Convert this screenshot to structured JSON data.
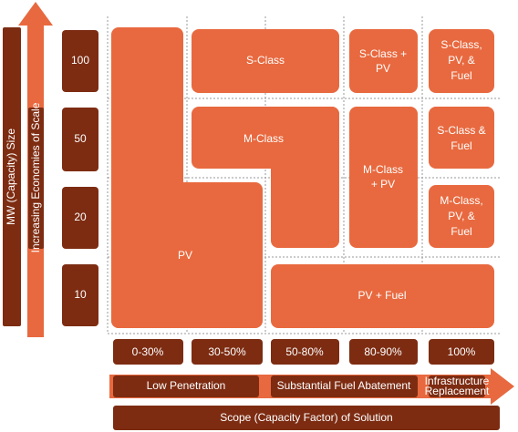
{
  "axis_label": "MW (Capacity) Size",
  "scale_arrow_label": "Increasing Economies of Scale",
  "size_levels": [
    100,
    50,
    20,
    10
  ],
  "solutions": [
    {
      "lines": [
        "PV"
      ]
    },
    {
      "lines": [
        "S-Class"
      ]
    },
    {
      "lines": [
        "M-Class"
      ]
    },
    {
      "lines": [
        "S-Class +",
        "PV"
      ]
    },
    {
      "lines": [
        "M-Class",
        "+ PV"
      ]
    },
    {
      "lines": [
        "S-Class,",
        "PV, &",
        "Fuel"
      ]
    },
    {
      "lines": [
        "S-Class &",
        "Fuel"
      ]
    },
    {
      "lines": [
        "M-Class,",
        "PV, &",
        "Fuel"
      ]
    },
    {
      "lines": [
        "PV + Fuel"
      ]
    }
  ],
  "capacity_factors": [
    "0-30%",
    "30-50%",
    "50-80%",
    "80-90%",
    "100%"
  ],
  "stages": [
    {
      "lines": [
        "Low Penetration"
      ]
    },
    {
      "lines": [
        "Substantial Fuel Abatement"
      ]
    },
    {
      "lines": [
        "Infrastructure",
        "Replacement"
      ]
    }
  ],
  "footer": "Scope (Capacity Factor) of Solution"
}
